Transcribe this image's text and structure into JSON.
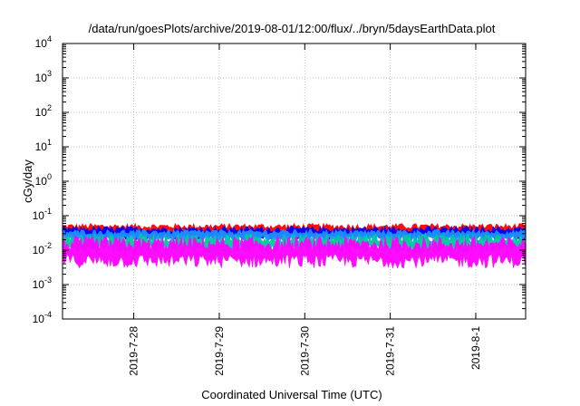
{
  "chart_data": {
    "type": "area",
    "title": "/data/run/goesPlots/archive/2019-08-01/12:00/flux/../bryn/5daysEarthData.plot",
    "xlabel": "Coordinated Universal Time (UTC)",
    "ylabel": "cGy/day",
    "yscale": "log",
    "ylim": [
      0.0001,
      10000
    ],
    "y_ticks": [
      {
        "base": "10",
        "exp": "-4"
      },
      {
        "base": "10",
        "exp": "-3"
      },
      {
        "base": "10",
        "exp": "-2"
      },
      {
        "base": "10",
        "exp": "-1"
      },
      {
        "base": "10",
        "exp": "0"
      },
      {
        "base": "10",
        "exp": "1"
      },
      {
        "base": "10",
        "exp": "2"
      },
      {
        "base": "10",
        "exp": "3"
      },
      {
        "base": "10",
        "exp": "4"
      }
    ],
    "xlim": [
      "2019-07-27T04:00",
      "2019-08-01T14:00"
    ],
    "x_ticks": [
      {
        "label": "2019-7-28",
        "date": "2019-07-28"
      },
      {
        "label": "2019-7-29",
        "date": "2019-07-29"
      },
      {
        "label": "2019-7-30",
        "date": "2019-07-30"
      },
      {
        "label": "2019-7-31",
        "date": "2019-07-31"
      },
      {
        "label": "2019-8-1",
        "date": "2019-08-01"
      }
    ],
    "grid": true,
    "series": [
      {
        "color": "#ff0000",
        "typical_range": [
          0.025,
          0.06
        ]
      },
      {
        "color": "#0000ff",
        "typical_range": [
          0.02,
          0.05
        ]
      },
      {
        "color": "#1e90ff",
        "typical_range": [
          0.018,
          0.04
        ]
      },
      {
        "color": "#00c8a0",
        "typical_range": [
          0.008,
          0.03
        ]
      },
      {
        "color": "#ff00ff",
        "typical_range": [
          0.003,
          0.025
        ]
      }
    ]
  }
}
